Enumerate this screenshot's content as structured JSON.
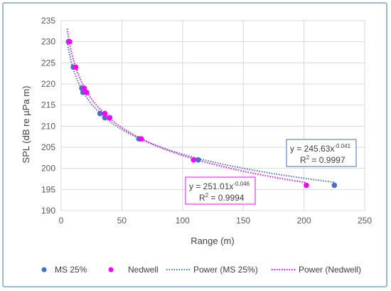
{
  "chart_data": {
    "type": "scatter",
    "xlabel": "Range (m)",
    "ylabel": "SPL (dB re µPa m)",
    "xlim": [
      0,
      250
    ],
    "ylim": [
      190,
      235
    ],
    "x_ticks": [
      "0",
      "50",
      "100",
      "150",
      "200",
      "250"
    ],
    "y_ticks": [
      "190",
      "195",
      "200",
      "205",
      "210",
      "215",
      "220",
      "225",
      "230",
      "235"
    ],
    "grid": true,
    "legend_position": "bottom",
    "series": [
      {
        "name": "MS 25%",
        "color": "#4472c4",
        "marker": "circle",
        "points": [
          [
            6,
            230
          ],
          [
            10,
            224
          ],
          [
            17,
            219
          ],
          [
            18,
            218
          ],
          [
            32,
            213
          ],
          [
            36,
            212
          ],
          [
            64,
            207
          ],
          [
            113,
            202
          ],
          [
            225,
            196
          ]
        ]
      },
      {
        "name": "Nedwell",
        "color": "#ff00ff",
        "marker": "circle",
        "points": [
          [
            7,
            230
          ],
          [
            12,
            224
          ],
          [
            19,
            219
          ],
          [
            21,
            218
          ],
          [
            36,
            213
          ],
          [
            40,
            212
          ],
          [
            66,
            207
          ],
          [
            109,
            202
          ],
          [
            202,
            196
          ]
        ]
      }
    ],
    "trendlines": [
      {
        "name": "Power (MS 25%)",
        "color": "#4472c4",
        "style": "dotted",
        "a": 245.63,
        "b": -0.041,
        "x_range": [
          5,
          226
        ],
        "equation_text": "y = 245.63x",
        "exponent_text": "-0.041",
        "r2_text": "R",
        "r2_sup": "2",
        "r2_value": " = 0.9997",
        "box_color": "#4472c4"
      },
      {
        "name": "Power (Nedwell)",
        "color": "#ff00ff",
        "style": "dotted",
        "a": 251.01,
        "b": -0.046,
        "x_range": [
          5,
          202
        ],
        "equation_text": "y = 251.01x",
        "exponent_text": "-0.046",
        "r2_text": "R",
        "r2_sup": "2",
        "r2_value": " = 0.9994",
        "box_color": "#ff00ff"
      }
    ]
  }
}
